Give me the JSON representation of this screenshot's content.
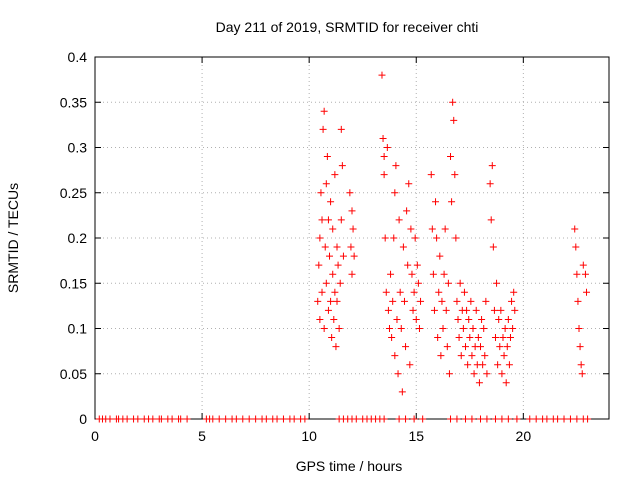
{
  "chart_data": {
    "type": "scatter",
    "title": "Day 211 of 2019, SRMTID for receiver chti",
    "xlabel": "GPS time / hours",
    "ylabel": "SRMTID / TECUs",
    "xlim": [
      0,
      24
    ],
    "ylim": [
      0,
      0.4
    ],
    "xticks": [
      0,
      5,
      10,
      15,
      20
    ],
    "xtick_labels": [
      "0",
      "5",
      "10",
      "15",
      "20"
    ],
    "yticks": [
      0,
      0.05,
      0.1,
      0.15,
      0.2,
      0.25,
      0.3,
      0.35,
      0.4
    ],
    "ytick_labels": [
      "0",
      "0.05",
      "0.1",
      "0.15",
      "0.2",
      "0.25",
      "0.3",
      "0.35",
      "0.4"
    ],
    "grid": true,
    "marker": "plus",
    "color": "#ff0000",
    "series": [
      {
        "name": "SRMTID",
        "points": [
          [
            0.2,
            0
          ],
          [
            0.35,
            0
          ],
          [
            0.5,
            0
          ],
          [
            0.7,
            0
          ],
          [
            1.0,
            0
          ],
          [
            1.1,
            0
          ],
          [
            1.3,
            0
          ],
          [
            1.5,
            0
          ],
          [
            1.8,
            0
          ],
          [
            2.0,
            0
          ],
          [
            2.3,
            0
          ],
          [
            2.5,
            0
          ],
          [
            2.7,
            0
          ],
          [
            3.0,
            0
          ],
          [
            3.1,
            0
          ],
          [
            3.4,
            0
          ],
          [
            3.6,
            0
          ],
          [
            3.9,
            0
          ],
          [
            4.0,
            0
          ],
          [
            4.3,
            0
          ],
          [
            5.2,
            0
          ],
          [
            5.35,
            0
          ],
          [
            5.5,
            0
          ],
          [
            5.8,
            0
          ],
          [
            6.1,
            0
          ],
          [
            6.4,
            0
          ],
          [
            6.6,
            0
          ],
          [
            6.9,
            0
          ],
          [
            7.2,
            0
          ],
          [
            7.5,
            0
          ],
          [
            7.8,
            0
          ],
          [
            8.0,
            0
          ],
          [
            8.3,
            0
          ],
          [
            8.5,
            0
          ],
          [
            8.8,
            0
          ],
          [
            9.1,
            0
          ],
          [
            9.3,
            0
          ],
          [
            9.6,
            0
          ],
          [
            9.8,
            0
          ],
          [
            11.4,
            0
          ],
          [
            11.6,
            0
          ],
          [
            11.8,
            0
          ],
          [
            12.0,
            0
          ],
          [
            12.2,
            0
          ],
          [
            12.5,
            0
          ],
          [
            12.7,
            0
          ],
          [
            12.9,
            0
          ],
          [
            13.1,
            0
          ],
          [
            13.3,
            0
          ],
          [
            13.5,
            0
          ],
          [
            14.2,
            0
          ],
          [
            14.5,
            0
          ],
          [
            14.9,
            0
          ],
          [
            15.3,
            0
          ],
          [
            16.6,
            0
          ],
          [
            16.9,
            0
          ],
          [
            17.3,
            0
          ],
          [
            17.6,
            0
          ],
          [
            18.0,
            0
          ],
          [
            18.3,
            0
          ],
          [
            18.7,
            0
          ],
          [
            19.0,
            0
          ],
          [
            19.3,
            0
          ],
          [
            19.7,
            0
          ],
          [
            20.3,
            0
          ],
          [
            20.6,
            0
          ],
          [
            20.9,
            0
          ],
          [
            21.1,
            0
          ],
          [
            21.4,
            0
          ],
          [
            21.6,
            0
          ],
          [
            21.9,
            0
          ],
          [
            22.2,
            0
          ],
          [
            22.5,
            0
          ],
          [
            22.8,
            0
          ],
          [
            23.0,
            0
          ],
          [
            10.4,
            0.13
          ],
          [
            10.45,
            0.17
          ],
          [
            10.5,
            0.11
          ],
          [
            10.5,
            0.2
          ],
          [
            10.55,
            0.25
          ],
          [
            10.6,
            0.14
          ],
          [
            10.6,
            0.22
          ],
          [
            10.65,
            0.32
          ],
          [
            10.7,
            0.1
          ],
          [
            10.7,
            0.34
          ],
          [
            10.75,
            0.19
          ],
          [
            10.8,
            0.26
          ],
          [
            10.8,
            0.15
          ],
          [
            10.85,
            0.29
          ],
          [
            10.9,
            0.12
          ],
          [
            10.9,
            0.22
          ],
          [
            10.95,
            0.18
          ],
          [
            11.0,
            0.24
          ],
          [
            11.0,
            0.13
          ],
          [
            11.05,
            0.09
          ],
          [
            11.1,
            0.16
          ],
          [
            11.1,
            0.21
          ],
          [
            11.15,
            0.11
          ],
          [
            11.2,
            0.14
          ],
          [
            11.2,
            0.27
          ],
          [
            11.25,
            0.08
          ],
          [
            11.3,
            0.13
          ],
          [
            11.3,
            0.19
          ],
          [
            11.35,
            0.17
          ],
          [
            11.4,
            0.1
          ],
          [
            11.45,
            0.15
          ],
          [
            11.5,
            0.32
          ],
          [
            11.5,
            0.22
          ],
          [
            11.55,
            0.28
          ],
          [
            11.6,
            0.18
          ],
          [
            11.9,
            0.25
          ],
          [
            11.95,
            0.19
          ],
          [
            12.0,
            0.23
          ],
          [
            12.0,
            0.16
          ],
          [
            12.05,
            0.21
          ],
          [
            12.1,
            0.18
          ],
          [
            13.4,
            0.38
          ],
          [
            13.45,
            0.31
          ],
          [
            13.5,
            0.27
          ],
          [
            13.5,
            0.29
          ],
          [
            13.55,
            0.2
          ],
          [
            13.6,
            0.14
          ],
          [
            13.65,
            0.3
          ],
          [
            13.7,
            0.12
          ],
          [
            13.75,
            0.1
          ],
          [
            13.8,
            0.16
          ],
          [
            13.85,
            0.09
          ],
          [
            13.9,
            0.13
          ],
          [
            13.95,
            0.2
          ],
          [
            14.0,
            0.25
          ],
          [
            14.0,
            0.07
          ],
          [
            14.05,
            0.28
          ],
          [
            14.1,
            0.11
          ],
          [
            14.15,
            0.05
          ],
          [
            14.2,
            0.22
          ],
          [
            14.25,
            0.14
          ],
          [
            14.3,
            0.1
          ],
          [
            14.35,
            0.03
          ],
          [
            14.4,
            0.19
          ],
          [
            14.45,
            0.13
          ],
          [
            14.5,
            0.08
          ],
          [
            14.55,
            0.23
          ],
          [
            14.6,
            0.17
          ],
          [
            14.65,
            0.26
          ],
          [
            14.7,
            0.06
          ],
          [
            14.75,
            0.21
          ],
          [
            14.8,
            0.16
          ],
          [
            14.85,
            0.12
          ],
          [
            14.9,
            0.14
          ],
          [
            14.95,
            0.2
          ],
          [
            15.0,
            0.11
          ],
          [
            15.05,
            0.17
          ],
          [
            15.1,
            0.15
          ],
          [
            15.15,
            0.1
          ],
          [
            15.2,
            0.13
          ],
          [
            15.7,
            0.27
          ],
          [
            15.75,
            0.21
          ],
          [
            15.8,
            0.16
          ],
          [
            15.85,
            0.12
          ],
          [
            15.9,
            0.24
          ],
          [
            15.95,
            0.2
          ],
          [
            16.0,
            0.09
          ],
          [
            16.05,
            0.14
          ],
          [
            16.1,
            0.18
          ],
          [
            16.15,
            0.07
          ],
          [
            16.2,
            0.13
          ],
          [
            16.25,
            0.1
          ],
          [
            16.3,
            0.16
          ],
          [
            16.35,
            0.21
          ],
          [
            16.4,
            0.12
          ],
          [
            16.45,
            0.08
          ],
          [
            16.5,
            0.15
          ],
          [
            16.55,
            0.05
          ],
          [
            16.6,
            0.29
          ],
          [
            16.65,
            0.24
          ],
          [
            16.7,
            0.35
          ],
          [
            16.75,
            0.33
          ],
          [
            16.8,
            0.27
          ],
          [
            16.85,
            0.2
          ],
          [
            16.9,
            0.13
          ],
          [
            16.95,
            0.11
          ],
          [
            17.0,
            0.09
          ],
          [
            17.05,
            0.15
          ],
          [
            17.1,
            0.07
          ],
          [
            17.15,
            0.12
          ],
          [
            17.2,
            0.1
          ],
          [
            17.25,
            0.14
          ],
          [
            17.3,
            0.08
          ],
          [
            17.35,
            0.12
          ],
          [
            17.4,
            0.06
          ],
          [
            17.45,
            0.11
          ],
          [
            17.5,
            0.09
          ],
          [
            17.55,
            0.13
          ],
          [
            17.6,
            0.07
          ],
          [
            17.65,
            0.1
          ],
          [
            17.7,
            0.05
          ],
          [
            17.75,
            0.08
          ],
          [
            17.8,
            0.12
          ],
          [
            17.85,
            0.06
          ],
          [
            17.9,
            0.09
          ],
          [
            17.95,
            0.04
          ],
          [
            18.0,
            0.08
          ],
          [
            18.05,
            0.11
          ],
          [
            18.1,
            0.06
          ],
          [
            18.15,
            0.1
          ],
          [
            18.2,
            0.07
          ],
          [
            18.25,
            0.13
          ],
          [
            18.3,
            0.05
          ],
          [
            18.45,
            0.26
          ],
          [
            18.5,
            0.22
          ],
          [
            18.55,
            0.28
          ],
          [
            18.6,
            0.19
          ],
          [
            18.65,
            0.12
          ],
          [
            18.7,
            0.09
          ],
          [
            18.75,
            0.15
          ],
          [
            18.8,
            0.06
          ],
          [
            18.85,
            0.11
          ],
          [
            18.9,
            0.08
          ],
          [
            18.95,
            0.12
          ],
          [
            19.0,
            0.05
          ],
          [
            19.05,
            0.09
          ],
          [
            19.1,
            0.07
          ],
          [
            19.15,
            0.1
          ],
          [
            19.2,
            0.04
          ],
          [
            19.25,
            0.08
          ],
          [
            19.3,
            0.11
          ],
          [
            19.35,
            0.06
          ],
          [
            19.4,
            0.09
          ],
          [
            19.45,
            0.13
          ],
          [
            19.5,
            0.1
          ],
          [
            19.55,
            0.14
          ],
          [
            19.6,
            0.12
          ],
          [
            22.4,
            0.21
          ],
          [
            22.45,
            0.19
          ],
          [
            22.5,
            0.16
          ],
          [
            22.55,
            0.13
          ],
          [
            22.6,
            0.1
          ],
          [
            22.65,
            0.08
          ],
          [
            22.7,
            0.06
          ],
          [
            22.75,
            0.05
          ],
          [
            22.8,
            0.17
          ],
          [
            22.9,
            0.16
          ],
          [
            22.95,
            0.14
          ]
        ]
      }
    ]
  }
}
